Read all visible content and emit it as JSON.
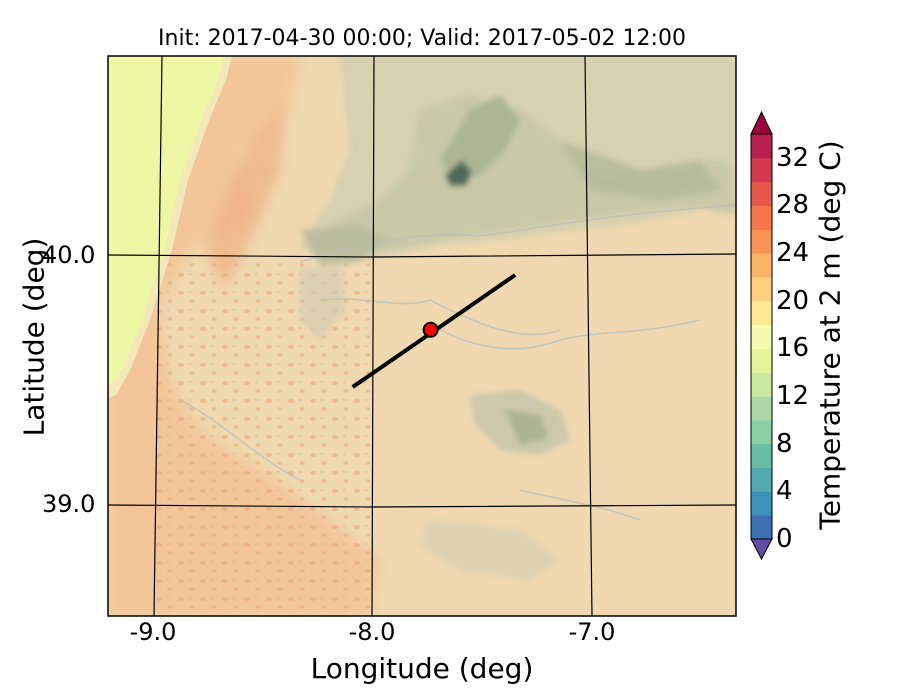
{
  "map": {
    "title": "Init: 2017-04-30 00:00; Valid: 2017-05-02 12:00",
    "xlabel": "Longitude (deg)",
    "ylabel": "Latitude (deg)",
    "lon_ticks": [
      "-9.0",
      "-8.0",
      "-7.0"
    ],
    "lat_ticks": [
      "40.0",
      "39.0"
    ],
    "lon_range": [
      -9.25,
      -6.35
    ],
    "lat_range": [
      38.55,
      40.8
    ],
    "cross_section": {
      "start": {
        "lon": -8.12,
        "lat": 39.47
      },
      "end": {
        "lon": -7.37,
        "lat": 39.92
      },
      "center": {
        "lon": -7.76,
        "lat": 39.7
      }
    },
    "colors": {
      "background": "#f0d9b0",
      "coast_band": "#eef8a4",
      "warm_area": "#f3c998",
      "mountain": "#c6c8a6",
      "peak": "#4d6b58",
      "line": "#000000",
      "marker": "#ff0000"
    }
  },
  "colorbar": {
    "label": "Temperature at 2 m (deg C)",
    "ticks": [
      "0",
      "4",
      "8",
      "12",
      "16",
      "20",
      "24",
      "28",
      "32"
    ],
    "levels": [
      0,
      2,
      4,
      6,
      8,
      10,
      12,
      14,
      16,
      18,
      20,
      22,
      24,
      26,
      28,
      30,
      32,
      34
    ],
    "colors": [
      "#5e4fa2",
      "#3f6fb3",
      "#3c91b8",
      "#52aab0",
      "#69bea5",
      "#8bcfa4",
      "#add8a3",
      "#cde9a0",
      "#e6f59a",
      "#f4faae",
      "#fee993",
      "#fed07e",
      "#fdb366",
      "#fa9354",
      "#f4754a",
      "#e4574a",
      "#d23a4e",
      "#b71f4f",
      "#9e0142"
    ],
    "extend": "both"
  }
}
